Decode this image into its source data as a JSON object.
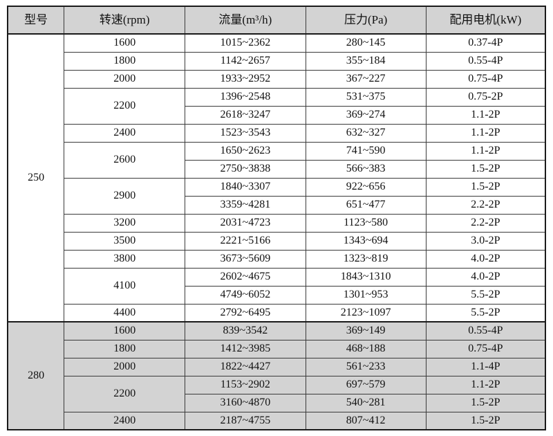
{
  "colors": {
    "header_bg": "#d3d3d3",
    "shaded_bg": "#d3d3d3",
    "border": "#3a3a3a",
    "border_strong": "#1a1a1a",
    "text": "#111111",
    "page_bg": "#ffffff"
  },
  "table": {
    "headers": [
      "型号",
      "转速(rpm)",
      "流量(m³/h)",
      "压力(Pa)",
      "配用电机(kW)"
    ],
    "sections": [
      {
        "model": "250",
        "shaded": false,
        "groups": [
          {
            "speed": "1600",
            "rows": [
              [
                "1015~2362",
                "280~145",
                "0.37-4P"
              ]
            ]
          },
          {
            "speed": "1800",
            "rows": [
              [
                "1142~2657",
                "355~184",
                "0.55-4P"
              ]
            ]
          },
          {
            "speed": "2000",
            "rows": [
              [
                "1933~2952",
                "367~227",
                "0.75-4P"
              ]
            ]
          },
          {
            "speed": "2200",
            "rows": [
              [
                "1396~2548",
                "531~375",
                "0.75-2P"
              ],
              [
                "2618~3247",
                "369~274",
                "1.1-2P"
              ]
            ]
          },
          {
            "speed": "2400",
            "rows": [
              [
                "1523~3543",
                "632~327",
                "1.1-2P"
              ]
            ]
          },
          {
            "speed": "2600",
            "rows": [
              [
                "1650~2623",
                "741~590",
                "1.1-2P"
              ],
              [
                "2750~3838",
                "566~383",
                "1.5-2P"
              ]
            ]
          },
          {
            "speed": "2900",
            "rows": [
              [
                "1840~3307",
                "922~656",
                "1.5-2P"
              ],
              [
                "3359~4281",
                "651~477",
                "2.2-2P"
              ]
            ]
          },
          {
            "speed": "3200",
            "rows": [
              [
                "2031~4723",
                "1123~580",
                "2.2-2P"
              ]
            ]
          },
          {
            "speed": "3500",
            "rows": [
              [
                "2221~5166",
                "1343~694",
                "3.0-2P"
              ]
            ]
          },
          {
            "speed": "3800",
            "rows": [
              [
                "3673~5609",
                "1323~819",
                "4.0-2P"
              ]
            ]
          },
          {
            "speed": "4100",
            "rows": [
              [
                "2602~4675",
                "1843~1310",
                "4.0-2P"
              ],
              [
                "4749~6052",
                "1301~953",
                "5.5-2P"
              ]
            ]
          },
          {
            "speed": "4400",
            "rows": [
              [
                "2792~6495",
                "2123~1097",
                "5.5-2P"
              ]
            ]
          }
        ]
      },
      {
        "model": "280",
        "shaded": true,
        "groups": [
          {
            "speed": "1600",
            "rows": [
              [
                "839~3542",
                "369~149",
                "0.55-4P"
              ]
            ]
          },
          {
            "speed": "1800",
            "rows": [
              [
                "1412~3985",
                "468~188",
                "0.75-4P"
              ]
            ]
          },
          {
            "speed": "2000",
            "rows": [
              [
                "1822~4427",
                "561~233",
                "1.1-4P"
              ]
            ]
          },
          {
            "speed": "2200",
            "rows": [
              [
                "1153~2902",
                "697~579",
                "1.1-2P"
              ],
              [
                "3160~4870",
                "540~281",
                "1.5-2P"
              ]
            ]
          },
          {
            "speed": "2400",
            "rows": [
              [
                "2187~4755",
                "807~412",
                "1.5-2P"
              ]
            ]
          }
        ]
      }
    ]
  }
}
